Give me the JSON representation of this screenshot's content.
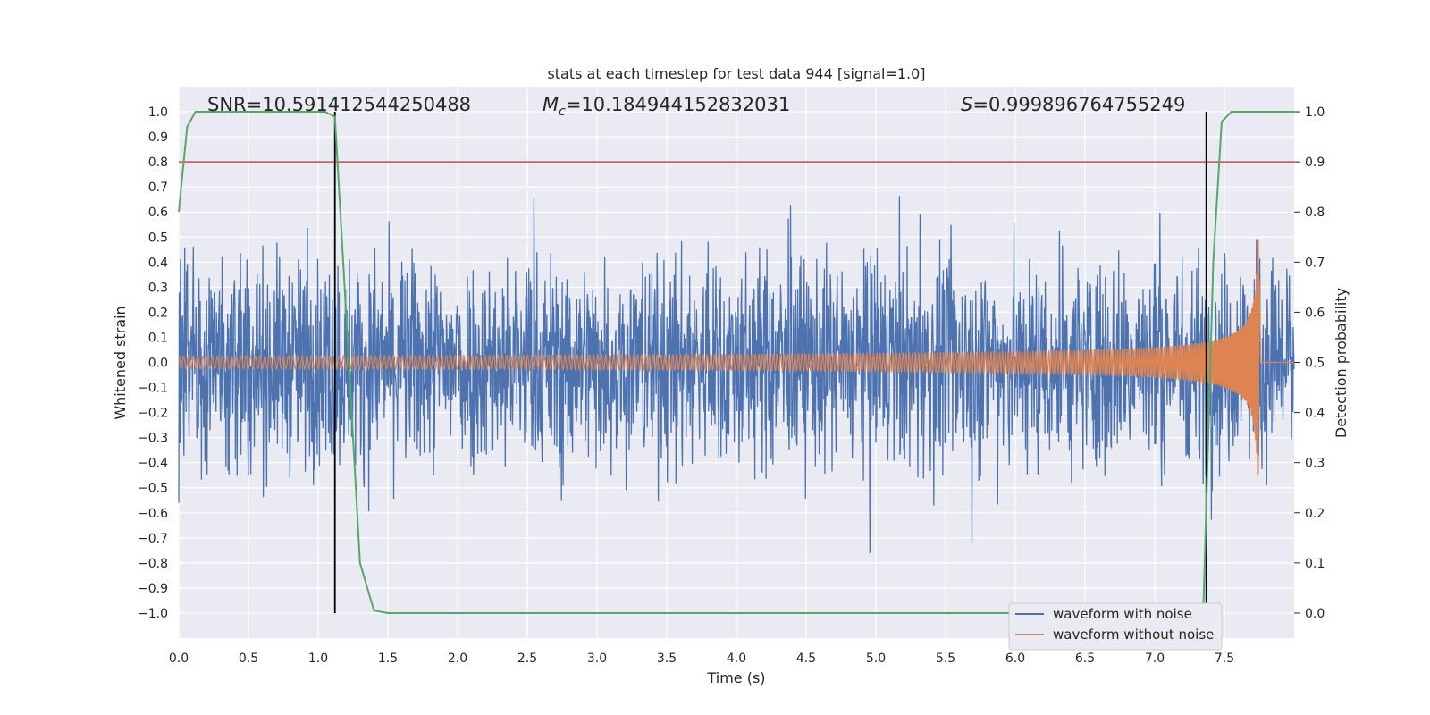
{
  "chart_data": {
    "type": "line",
    "title": "stats at each timestep for test data 944 [signal=1.0]",
    "xlabel": "Time (s)",
    "ylabel": "Whitened strain",
    "ylabel_right": "Detection probability",
    "xlim": [
      0.0,
      8.0
    ],
    "ylim": [
      -1.1,
      1.1
    ],
    "ylim_right": [
      -0.05,
      1.05
    ],
    "x_ticks": [
      "0.0",
      "0.5",
      "1.0",
      "1.5",
      "2.0",
      "2.5",
      "3.0",
      "3.5",
      "4.0",
      "4.5",
      "5.0",
      "5.5",
      "6.0",
      "6.5",
      "7.0",
      "7.5"
    ],
    "y_ticks": [
      "1.0",
      "0.9",
      "0.8",
      "0.7",
      "0.6",
      "0.5",
      "0.4",
      "0.3",
      "0.2",
      "0.1",
      "0.0",
      "−0.1",
      "−0.2",
      "−0.3",
      "−0.4",
      "−0.5",
      "−0.6",
      "−0.7",
      "−0.8",
      "−0.9",
      "−1.0"
    ],
    "y_ticks_right": [
      "1.0",
      "0.9",
      "0.8",
      "0.7",
      "0.6",
      "0.5",
      "0.4",
      "0.3",
      "0.2",
      "0.1",
      "0.0"
    ],
    "grid": true,
    "legend_position": "lower-right",
    "annotations": {
      "snr": "SNR=10.591412544250488",
      "mc_symbol": "M",
      "mc_sub": "c",
      "mc_value": "=10.184944152832031",
      "s_symbol": "S",
      "s_value": "=0.999896764755249"
    },
    "series": [
      {
        "name": "waveform with noise",
        "color": "#4c72b0",
        "amplitude_range": [
          -1.0,
          1.0
        ]
      },
      {
        "name": "waveform without noise",
        "color": "#dd8452",
        "x_end": 7.75,
        "peak_amplitude": 0.52
      }
    ],
    "detection_probability": {
      "color": "#55a868",
      "x": [
        0.0,
        0.06,
        0.12,
        0.3,
        0.6,
        0.9,
        1.05,
        1.12,
        1.2,
        1.3,
        1.4,
        1.5,
        2.0,
        3.0,
        4.0,
        5.0,
        6.0,
        6.5,
        7.0,
        7.2,
        7.35,
        7.42,
        7.48,
        7.55,
        7.8,
        8.0
      ],
      "y": [
        0.8,
        0.97,
        1.0,
        1.0,
        1.0,
        1.0,
        1.0,
        0.99,
        0.6,
        0.1,
        0.005,
        0.0,
        0.0,
        0.0,
        0.0,
        0.0,
        0.0,
        0.0,
        0.0,
        0.0,
        0.02,
        0.7,
        0.98,
        1.0,
        1.0,
        1.0
      ]
    },
    "threshold_line": {
      "y_right": 0.9,
      "color": "#c44e52"
    },
    "vertical_markers": [
      1.12,
      7.37
    ]
  }
}
